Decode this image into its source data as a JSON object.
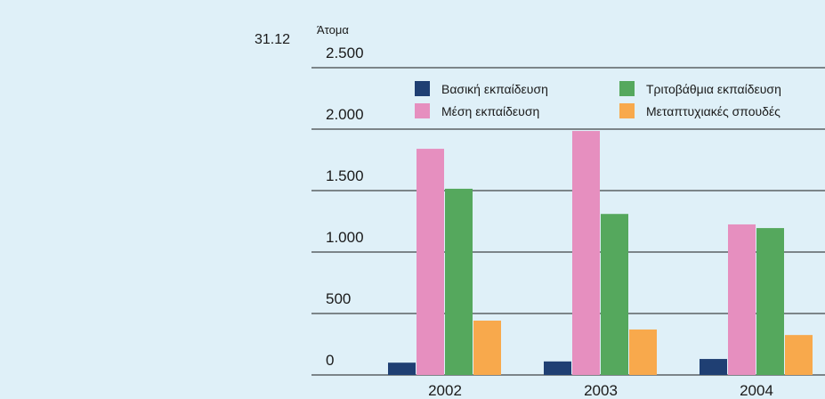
{
  "chart_data": {
    "type": "bar",
    "figure_number": "31.12",
    "y_label": "Άτομα",
    "categories": [
      "2002",
      "2003",
      "2004"
    ],
    "series": [
      {
        "name": "Βασική εκπαίδευση",
        "color": "#1f3f73",
        "values": [
          100,
          110,
          130
        ]
      },
      {
        "name": "Μέση εκπαίδευση",
        "color": "#e68fbf",
        "values": [
          1840,
          1985,
          1225
        ]
      },
      {
        "name": "Τριτοβάθμια εκπαίδευση",
        "color": "#55a85d",
        "values": [
          1515,
          1310,
          1195
        ]
      },
      {
        "name": "Μεταπτυχιακές σπουδές",
        "color": "#f8a94c",
        "values": [
          442,
          370,
          325
        ]
      }
    ],
    "ylim": [
      0,
      2500
    ],
    "yticks": [
      0,
      500,
      {
        "value": 1000,
        "label": "1.000"
      },
      {
        "value": 1500,
        "label": "1.500"
      },
      {
        "value": 2000,
        "label": "2.000"
      },
      {
        "value": 2500,
        "label": "2.500"
      }
    ],
    "grid": true,
    "legend": "top"
  }
}
